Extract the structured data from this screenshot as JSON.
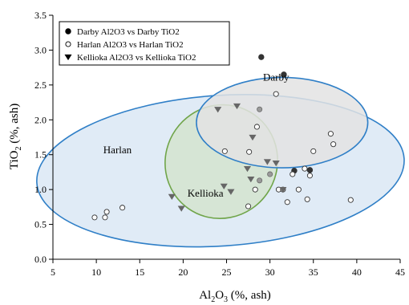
{
  "chart_data": {
    "type": "scatter",
    "xlabel": {
      "pre": "Al",
      "sub": "2",
      "mid": "O",
      "sub2": "3",
      "post": " (%, ash)"
    },
    "ylabel": {
      "pre": "TiO",
      "sub": "2",
      "post": " (%, ash)"
    },
    "xlim": [
      5,
      45
    ],
    "ylim": [
      0,
      3.5
    ],
    "x_ticks": [
      5,
      10,
      15,
      20,
      25,
      30,
      35,
      40,
      45
    ],
    "y_ticks": [
      0.0,
      0.5,
      1.0,
      1.5,
      2.0,
      2.5,
      3.0,
      3.5
    ],
    "x_tick_labels": [
      "5",
      "10",
      "15",
      "20",
      "25",
      "30",
      "35",
      "40",
      "45"
    ],
    "y_tick_labels": [
      "0.0",
      "0.5",
      "1.0",
      "1.5",
      "2.0",
      "2.5",
      "3.0",
      "3.5"
    ],
    "grid": false,
    "legend_position": "top-left",
    "series": [
      {
        "name": "Darby Al2O3 vs Darby TiO2",
        "marker": "filled-circle",
        "color": "#333333",
        "points": [
          [
            29.0,
            2.9
          ],
          [
            31.6,
            2.65
          ],
          [
            32.8,
            1.27
          ],
          [
            34.6,
            1.28
          ]
        ]
      },
      {
        "name": "Harlan Al2O3 vs Harlan TiO2",
        "marker": "open-circle",
        "color": "#333333",
        "points": [
          [
            9.8,
            0.6
          ],
          [
            11.0,
            0.6
          ],
          [
            11.2,
            0.68
          ],
          [
            13.0,
            0.74
          ],
          [
            24.8,
            1.55
          ],
          [
            27.6,
            1.54
          ],
          [
            27.5,
            0.76
          ],
          [
            28.3,
            1.0
          ],
          [
            28.5,
            1.9
          ],
          [
            30.7,
            2.37
          ],
          [
            31.0,
            1.0
          ],
          [
            31.5,
            1.0
          ],
          [
            32.0,
            0.82
          ],
          [
            32.6,
            1.22
          ],
          [
            33.3,
            1.0
          ],
          [
            34.0,
            1.3
          ],
          [
            34.3,
            0.86
          ],
          [
            34.6,
            1.2
          ],
          [
            35.0,
            1.55
          ],
          [
            37.0,
            1.8
          ],
          [
            37.3,
            1.65
          ],
          [
            39.3,
            0.85
          ]
        ]
      },
      {
        "name": "Kellioka Al2O3 vs Kellioka TiO2",
        "marker": "triangle-down",
        "color": "#666666",
        "points": [
          [
            18.7,
            0.9
          ],
          [
            19.8,
            0.73
          ],
          [
            24.0,
            2.15
          ],
          [
            24.7,
            1.05
          ],
          [
            25.5,
            0.97
          ],
          [
            26.2,
            2.2
          ],
          [
            27.4,
            1.3
          ],
          [
            27.8,
            1.15
          ],
          [
            28.0,
            1.75
          ],
          [
            29.7,
            1.4
          ],
          [
            30.7,
            1.38
          ],
          [
            31.5,
            1.0
          ]
        ]
      }
    ],
    "extra_points": [
      [
        28.8,
        2.15
      ],
      [
        28.8,
        1.13
      ],
      [
        30.0,
        1.22
      ]
    ],
    "ellipses": [
      {
        "label": "Harlan",
        "label_x": 10.8,
        "label_y": 1.52,
        "cx": 24.3,
        "cy": 1.27,
        "rx": 21.2,
        "ry": 1.08,
        "angle": 3.8,
        "fill": "#dbe8f5",
        "stroke": "#2f7fc7"
      },
      {
        "label": "Kellioka",
        "label_x": 20.5,
        "label_y": 0.9,
        "cx": 24.4,
        "cy": 1.4,
        "rx": 6.6,
        "ry": 0.8,
        "angle": 55,
        "fill": "#d3e4cf",
        "stroke": "#70a54a"
      },
      {
        "label": "Darby",
        "label_x": 29.2,
        "label_y": 2.56,
        "cx": 31.4,
        "cy": 1.96,
        "rx": 5.2,
        "ry": 1.23,
        "angle": 90,
        "fill": "#e3e3e3",
        "stroke": "#2f7fc7"
      }
    ]
  }
}
